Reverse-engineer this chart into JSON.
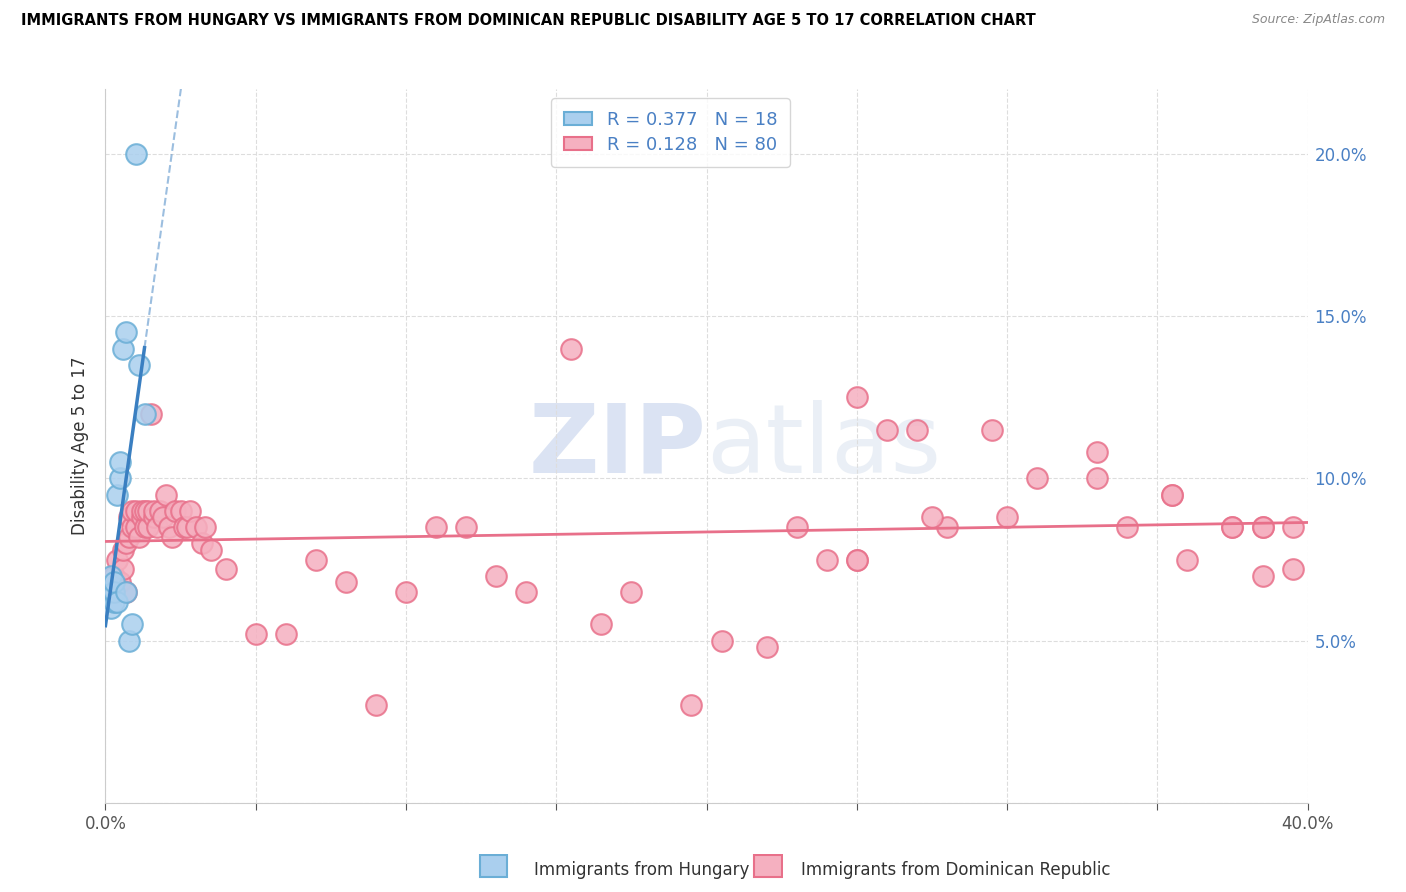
{
  "title": "IMMIGRANTS FROM HUNGARY VS IMMIGRANTS FROM DOMINICAN REPUBLIC DISABILITY AGE 5 TO 17 CORRELATION CHART",
  "source": "Source: ZipAtlas.com",
  "ylabel": "Disability Age 5 to 17",
  "xlabel_hungary": "Immigrants from Hungary",
  "xlabel_dr": "Immigrants from Dominican Republic",
  "r_hungary": 0.377,
  "n_hungary": 18,
  "r_dr": 0.128,
  "n_dr": 80,
  "xlim": [
    0.0,
    0.4
  ],
  "ylim": [
    0.0,
    0.22
  ],
  "yticks_right": [
    0.05,
    0.1,
    0.15,
    0.2
  ],
  "ytick_labels_right": [
    "5.0%",
    "10.0%",
    "15.0%",
    "20.0%"
  ],
  "color_hungary": "#aacfee",
  "color_hungary_edge": "#6aaed6",
  "color_hungary_reg": "#3a7fc1",
  "color_dr": "#f5b0c0",
  "color_dr_edge": "#e8708a",
  "color_dr_reg": "#e8708a",
  "color_right_axis": "#4a80c4",
  "color_grid": "#dddddd",
  "watermark": "ZIPatlas",
  "hungary_x": [
    0.001,
    0.002,
    0.002,
    0.003,
    0.003,
    0.003,
    0.004,
    0.004,
    0.005,
    0.005,
    0.006,
    0.007,
    0.007,
    0.008,
    0.009,
    0.01,
    0.011,
    0.013
  ],
  "hungary_y": [
    0.065,
    0.07,
    0.06,
    0.062,
    0.065,
    0.068,
    0.062,
    0.095,
    0.1,
    0.105,
    0.14,
    0.145,
    0.065,
    0.05,
    0.055,
    0.2,
    0.135,
    0.12
  ],
  "dr_x": [
    0.003,
    0.004,
    0.005,
    0.006,
    0.006,
    0.007,
    0.007,
    0.008,
    0.008,
    0.009,
    0.009,
    0.01,
    0.01,
    0.011,
    0.012,
    0.012,
    0.013,
    0.013,
    0.014,
    0.014,
    0.015,
    0.016,
    0.016,
    0.017,
    0.018,
    0.019,
    0.02,
    0.021,
    0.022,
    0.023,
    0.025,
    0.026,
    0.027,
    0.028,
    0.03,
    0.032,
    0.033,
    0.035,
    0.04,
    0.05,
    0.06,
    0.07,
    0.08,
    0.09,
    0.1,
    0.11,
    0.12,
    0.13,
    0.14,
    0.155,
    0.165,
    0.175,
    0.195,
    0.205,
    0.22,
    0.23,
    0.24,
    0.25,
    0.26,
    0.27,
    0.28,
    0.295,
    0.31,
    0.33,
    0.34,
    0.355,
    0.36,
    0.375,
    0.385,
    0.395,
    0.25,
    0.3,
    0.33,
    0.355,
    0.375,
    0.385,
    0.395,
    0.25,
    0.275,
    0.385
  ],
  "dr_y": [
    0.07,
    0.075,
    0.068,
    0.072,
    0.078,
    0.065,
    0.08,
    0.082,
    0.088,
    0.085,
    0.09,
    0.085,
    0.09,
    0.082,
    0.088,
    0.09,
    0.085,
    0.09,
    0.085,
    0.09,
    0.12,
    0.088,
    0.09,
    0.085,
    0.09,
    0.088,
    0.095,
    0.085,
    0.082,
    0.09,
    0.09,
    0.085,
    0.085,
    0.09,
    0.085,
    0.08,
    0.085,
    0.078,
    0.072,
    0.052,
    0.052,
    0.075,
    0.068,
    0.03,
    0.065,
    0.085,
    0.085,
    0.07,
    0.065,
    0.14,
    0.055,
    0.065,
    0.03,
    0.05,
    0.048,
    0.085,
    0.075,
    0.075,
    0.115,
    0.115,
    0.085,
    0.115,
    0.1,
    0.1,
    0.085,
    0.095,
    0.075,
    0.085,
    0.07,
    0.085,
    0.125,
    0.088,
    0.108,
    0.095,
    0.085,
    0.085,
    0.072,
    0.075,
    0.088,
    0.085
  ]
}
